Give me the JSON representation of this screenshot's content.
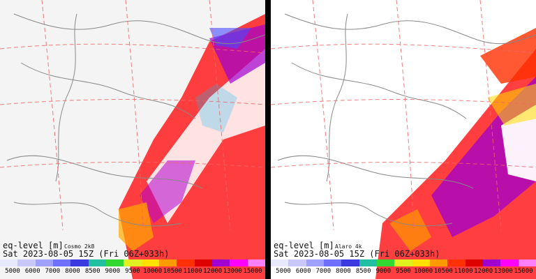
{
  "panels": [
    {
      "model": "Cosmo 2k8",
      "field": "eq-level [m]",
      "valid": "Sat 2023-08-05 15Z (Fri 06Z+033h)"
    },
    {
      "model": "Alaro 4k",
      "field": "eq-level [m]",
      "valid": "Sat 2023-08-05 15Z (Fri 06Z+033h)"
    }
  ],
  "legend": {
    "ticks": [
      "5000",
      "6000",
      "7000",
      "8000",
      "8500",
      "9000",
      "9500",
      "10000",
      "10500",
      "11000",
      "12000",
      "13000",
      "15000"
    ],
    "colors": [
      "#e8e8ff",
      "#c8c8ff",
      "#a0a0ff",
      "#7070ff",
      "#3a3ae0",
      "#20c0a0",
      "#30d830",
      "#e0f020",
      "#ffe000",
      "#ff9a00",
      "#ff3000",
      "#e00000",
      "#a000d0",
      "#ff00ff",
      "#ff80ff"
    ]
  }
}
